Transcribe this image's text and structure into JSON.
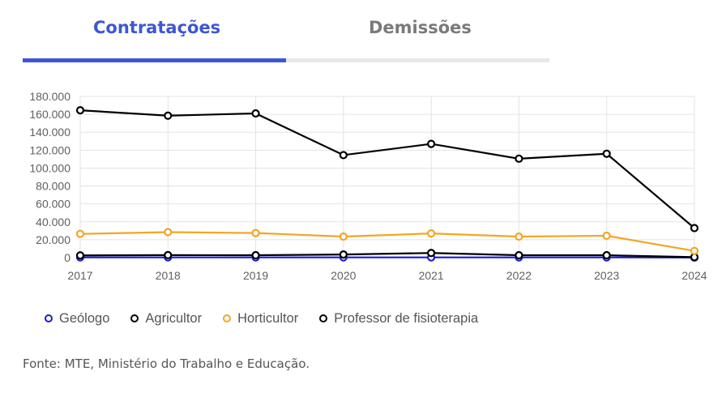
{
  "tabs": {
    "active_label": "Contratações",
    "inactive_label": "Demissões",
    "accent_color": "#3d56d6"
  },
  "chart_data": {
    "type": "line",
    "x": [
      "2017",
      "2018",
      "2019",
      "2020",
      "2021",
      "2022",
      "2023",
      "2024"
    ],
    "ylim": [
      0,
      180000
    ],
    "yticks": [
      0,
      20000,
      40000,
      60000,
      80000,
      100000,
      120000,
      140000,
      160000,
      180000
    ],
    "ytick_labels": [
      "0",
      "20.000",
      "40.000",
      "60.000",
      "80.000",
      "100.000",
      "120.000",
      "140.000",
      "160.000",
      "180.000"
    ],
    "grid": true,
    "legend_position": "bottom-left",
    "series": [
      {
        "name": "Geólogo",
        "color": "#1a1ad6",
        "values": [
          300,
          300,
          300,
          300,
          300,
          300,
          300,
          100
        ]
      },
      {
        "name": "Agricultor",
        "color": "#000000",
        "values": [
          2500,
          2800,
          2700,
          3500,
          5200,
          2700,
          2700,
          600
        ]
      },
      {
        "name": "Horticultor",
        "color": "#f2a623",
        "values": [
          26500,
          28500,
          27500,
          23500,
          27000,
          23500,
          24500,
          7500
        ]
      },
      {
        "name": "Professor de fisioterapia",
        "color": "#000000",
        "values": [
          164500,
          158500,
          161000,
          114500,
          127000,
          110500,
          116000,
          33000
        ]
      }
    ]
  },
  "source": "Fonte: MTE, Ministério do Trabalho e Educação."
}
